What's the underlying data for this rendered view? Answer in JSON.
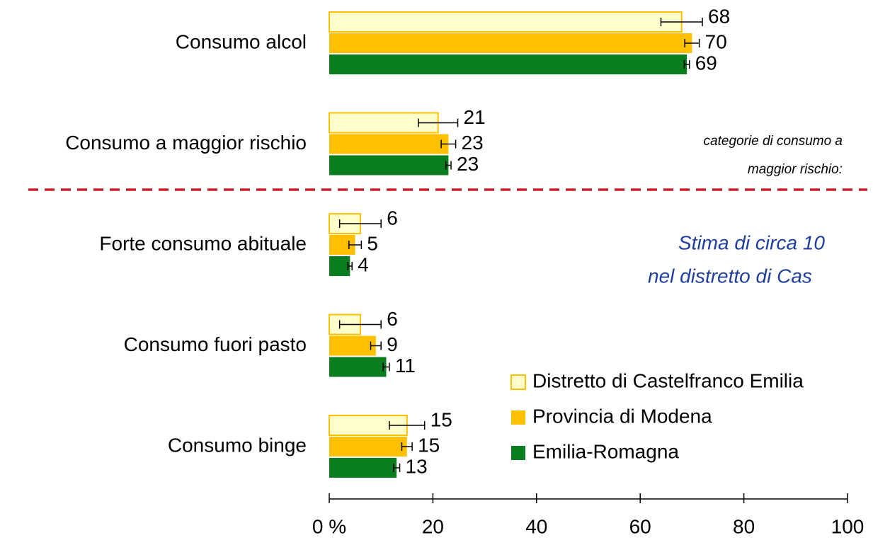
{
  "chart_data": {
    "type": "hbar",
    "categories": [
      "Consumo alcol",
      "Consumo a maggior rischio",
      "Forte consumo abituale",
      "Consumo fuori pasto",
      "Consumo binge"
    ],
    "series": [
      {
        "name": "Distretto di Castelfranco Emilia",
        "color": "#ffffcc",
        "edge": "#ffc000",
        "values": [
          68,
          21,
          6,
          6,
          15
        ],
        "errors": [
          4,
          3.8,
          4,
          4,
          3.4
        ]
      },
      {
        "name": "Provincia di Modena",
        "color": "#ffc000",
        "values": [
          70,
          23,
          5,
          9,
          15
        ],
        "errors": [
          1.4,
          1.4,
          1.2,
          1,
          1
        ]
      },
      {
        "name": "Emilia-Romagna",
        "color": "#0a7d1e",
        "values": [
          69,
          23,
          4,
          11,
          13
        ],
        "errors": [
          0.5,
          0.5,
          0.4,
          0.6,
          0.6
        ]
      }
    ],
    "xlim": [
      0,
      100
    ],
    "xticks": [
      {
        "value": 0,
        "label": "0 %"
      },
      20,
      40,
      60,
      80,
      100
    ],
    "annotations": [
      "categorie di consumo a",
      "maggior rischio:",
      "Stima di circa 10",
      "nel distretto di Cas"
    ]
  }
}
